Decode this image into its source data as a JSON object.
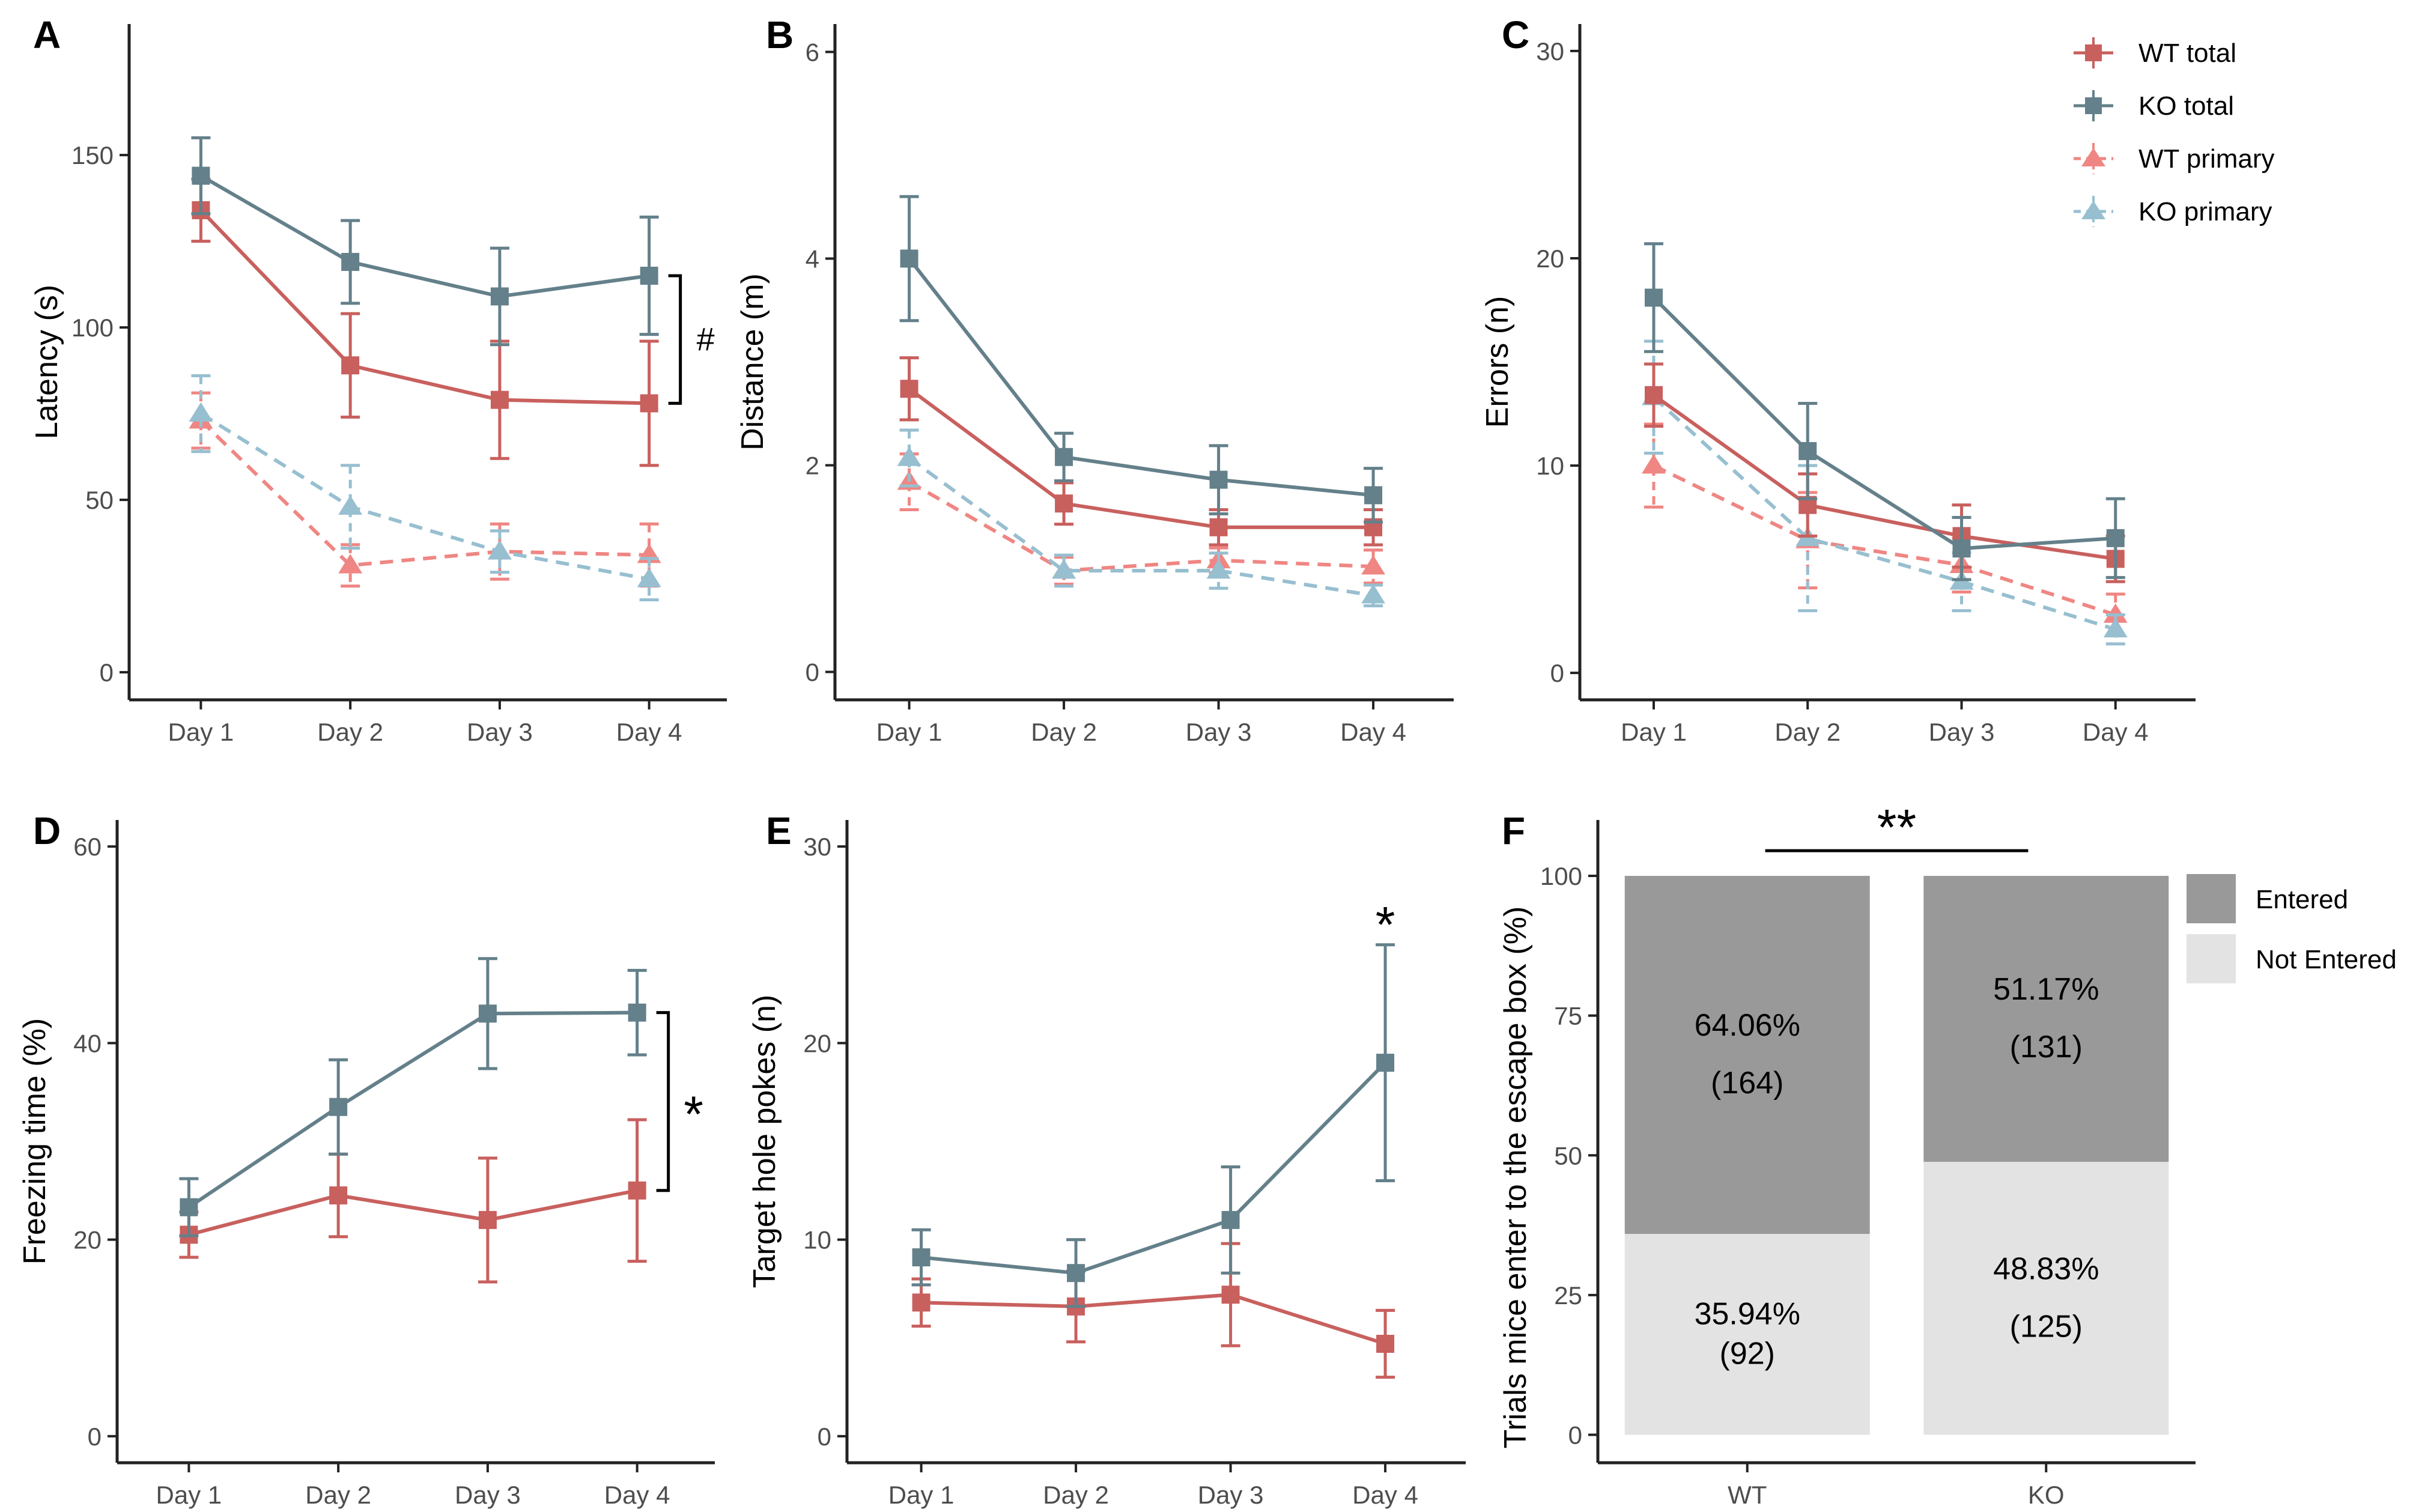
{
  "colors": {
    "wt_total": "#c8605e",
    "ko_total": "#64808a",
    "wt_primary": "#ef8683",
    "ko_primary": "#97bfd0",
    "entered": "#999999",
    "not_entered": "#e3e3e3",
    "axis": "#222222",
    "text": "#000000"
  },
  "legend_lines": {
    "items": [
      {
        "key": "wt_total",
        "label": "WT  total",
        "shape": "square",
        "dash": false
      },
      {
        "key": "ko_total",
        "label": "KO  total",
        "shape": "square",
        "dash": false
      },
      {
        "key": "wt_primary",
        "label": "WT  primary",
        "shape": "triangle",
        "dash": true
      },
      {
        "key": "ko_primary",
        "label": "KO  primary",
        "shape": "triangle",
        "dash": true
      }
    ]
  },
  "legend_bars": {
    "items": [
      {
        "key": "entered",
        "label": "Entered"
      },
      {
        "key": "not_entered",
        "label": "Not Entered"
      }
    ]
  },
  "chart_data": [
    {
      "panel": "A",
      "type": "line",
      "xlabel": "",
      "ylabel": "Latency (s)",
      "categories": [
        "Day 1",
        "Day 2",
        "Day 3",
        "Day 4"
      ],
      "ylim": [
        -8,
        188
      ],
      "yticks": [
        0,
        50,
        100,
        150
      ],
      "series": [
        {
          "key": "ko_total",
          "values": [
            144,
            119,
            109,
            115
          ],
          "err": [
            11,
            12,
            14,
            17
          ]
        },
        {
          "key": "wt_total",
          "values": [
            134,
            89,
            79,
            78
          ],
          "err": [
            9,
            15,
            17,
            18
          ]
        },
        {
          "key": "ko_primary",
          "values": [
            75,
            48,
            35,
            27
          ],
          "err": [
            11,
            12,
            6,
            6
          ]
        },
        {
          "key": "wt_primary",
          "values": [
            73,
            31,
            35,
            34
          ],
          "err": [
            8,
            6,
            8,
            9
          ]
        }
      ],
      "annotation": {
        "text": "#",
        "from": 115,
        "to": 78,
        "at": "Day 4"
      }
    },
    {
      "panel": "B",
      "type": "line",
      "xlabel": "",
      "ylabel": "Distance (m)",
      "categories": [
        "Day 1",
        "Day 2",
        "Day 3",
        "Day 4"
      ],
      "ylim": [
        -0.27,
        6.27
      ],
      "yticks": [
        0,
        2,
        4,
        6
      ],
      "series": [
        {
          "key": "ko_total",
          "values": [
            4.0,
            2.08,
            1.86,
            1.71
          ],
          "err": [
            0.6,
            0.23,
            0.33,
            0.26
          ]
        },
        {
          "key": "wt_total",
          "values": [
            2.74,
            1.63,
            1.4,
            1.4
          ],
          "err": [
            0.3,
            0.2,
            0.17,
            0.17
          ]
        },
        {
          "key": "ko_primary",
          "values": [
            2.07,
            0.98,
            0.98,
            0.74
          ],
          "err": [
            0.27,
            0.15,
            0.17,
            0.1
          ]
        },
        {
          "key": "wt_primary",
          "values": [
            1.84,
            0.98,
            1.08,
            1.02
          ],
          "err": [
            0.27,
            0.13,
            0.12,
            0.16
          ]
        }
      ]
    },
    {
      "panel": "C",
      "type": "line",
      "xlabel": "",
      "ylabel": "Errors (n)",
      "categories": [
        "Day 1",
        "Day 2",
        "Day 3",
        "Day 4"
      ],
      "ylim": [
        -1.3,
        31.3
      ],
      "yticks": [
        0,
        10,
        20,
        30
      ],
      "series": [
        {
          "key": "ko_total",
          "values": [
            18.1,
            10.7,
            6.0,
            6.5
          ],
          "err": [
            2.6,
            2.3,
            1.5,
            1.9
          ]
        },
        {
          "key": "wt_total",
          "values": [
            13.4,
            8.1,
            6.6,
            5.5
          ],
          "err": [
            1.5,
            1.5,
            1.5,
            1.1
          ]
        },
        {
          "key": "ko_primary",
          "values": [
            13.3,
            6.5,
            4.4,
            2.1
          ],
          "err": [
            2.7,
            3.5,
            1.4,
            0.7
          ]
        },
        {
          "key": "wt_primary",
          "values": [
            10.0,
            6.4,
            5.2,
            2.8
          ],
          "err": [
            2.0,
            2.3,
            1.3,
            1.0
          ]
        }
      ]
    },
    {
      "panel": "D",
      "type": "line",
      "xlabel": "",
      "ylabel": "Freezing time (%)",
      "categories": [
        "Day 1",
        "Day 2",
        "Day 3",
        "Day 4"
      ],
      "ylim": [
        -2.7,
        62.7
      ],
      "yticks": [
        0,
        20,
        40,
        60
      ],
      "series": [
        {
          "key": "ko_total",
          "values": [
            23.3,
            33.5,
            43.0,
            43.1
          ],
          "err": [
            2.9,
            4.8,
            5.6,
            4.3
          ]
        },
        {
          "key": "wt_total",
          "values": [
            20.5,
            24.5,
            22.0,
            25.0
          ],
          "err": [
            2.3,
            4.2,
            6.3,
            7.2
          ]
        }
      ],
      "annotation": {
        "text": "*",
        "from": 43.1,
        "to": 25.0,
        "at": "Day 4"
      }
    },
    {
      "panel": "E",
      "type": "line",
      "xlabel": "",
      "ylabel": "Target hole pokes (n)",
      "categories": [
        "Day 1",
        "Day 2",
        "Day 3",
        "Day 4"
      ],
      "ylim": [
        -1.35,
        31.35
      ],
      "yticks": [
        0,
        10,
        20,
        30
      ],
      "series": [
        {
          "key": "ko_total",
          "values": [
            9.1,
            8.3,
            11.0,
            19.0
          ],
          "err": [
            1.4,
            1.7,
            2.7,
            6.0
          ]
        },
        {
          "key": "wt_total",
          "values": [
            6.8,
            6.6,
            7.2,
            4.7
          ],
          "err": [
            1.2,
            1.8,
            2.6,
            1.7
          ]
        }
      ],
      "annotation": {
        "text": "*",
        "at": "Day 4"
      }
    },
    {
      "panel": "F",
      "type": "bar",
      "stacked": true,
      "xlabel": "",
      "ylabel": "Trials mice enter to the escape box (%)",
      "categories": [
        "WT",
        "KO"
      ],
      "ylim": [
        -5,
        110
      ],
      "yticks": [
        0,
        25,
        50,
        75,
        100
      ],
      "series": [
        {
          "key": "not_entered",
          "name": "Not Entered",
          "values": [
            35.94,
            48.83
          ],
          "labels": [
            [
              "35.94%",
              "(92)"
            ],
            [
              "48.83%",
              "(125)"
            ]
          ]
        },
        {
          "key": "entered",
          "name": "Entered",
          "values": [
            64.06,
            51.17
          ],
          "labels": [
            [
              "64.06%",
              "(164)"
            ],
            [
              "51.17%",
              "(131)"
            ]
          ]
        }
      ],
      "annotation": {
        "text": "**"
      }
    }
  ]
}
